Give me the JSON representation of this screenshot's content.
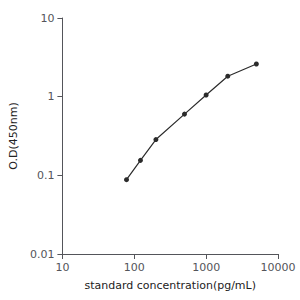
{
  "chart_data": {
    "type": "line",
    "x": [
      78,
      122,
      200,
      500,
      1000,
      2000,
      5000
    ],
    "values": [
      0.088,
      0.155,
      0.285,
      0.6,
      1.05,
      1.82,
      2.6
    ],
    "xlabel": "standard concentration(pg/mL)",
    "ylabel": "O.D(450nm)",
    "log": true,
    "xlim": [
      10,
      10000
    ],
    "ylim": [
      0.01,
      10
    ],
    "xticks": [
      10,
      100,
      1000,
      10000
    ],
    "yticks": [
      0.01,
      0.1,
      1,
      10
    ],
    "color": "#2b2b2b",
    "marker": "circle",
    "grid": false
  }
}
